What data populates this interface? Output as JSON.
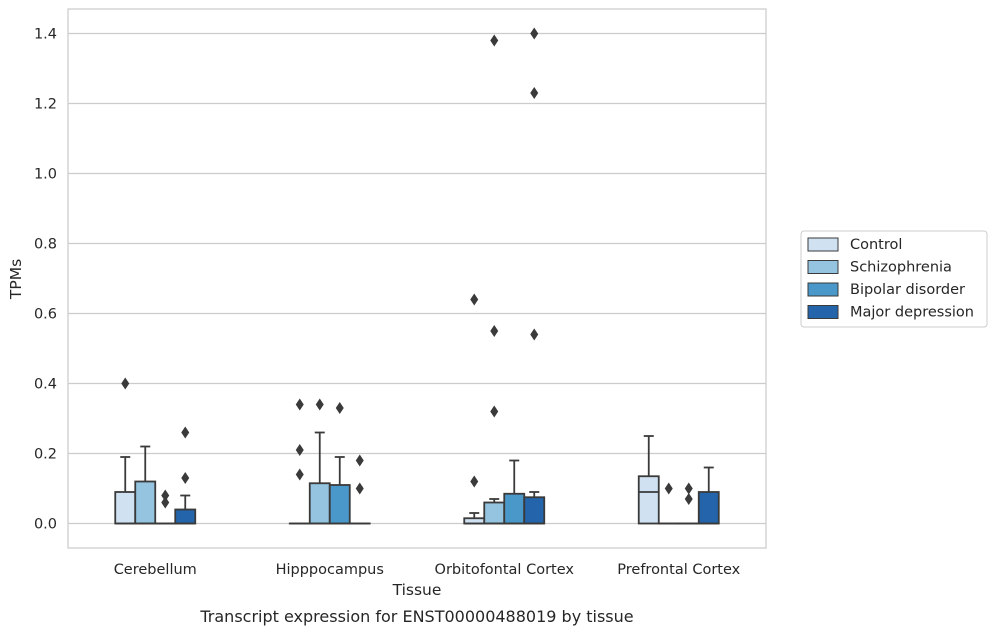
{
  "chart_data": {
    "type": "boxplot",
    "title": "",
    "caption": "Transcript expression for ENST00000488019 by tissue",
    "xlabel": "Tissue",
    "ylabel": "TPMs",
    "ylim": [
      -0.07,
      1.47
    ],
    "yticks": [
      0.0,
      0.2,
      0.4,
      0.6,
      0.8,
      1.0,
      1.2,
      1.4
    ],
    "ytick_labels": [
      "0.0",
      "0.2",
      "0.4",
      "0.6",
      "0.8",
      "1.0",
      "1.2",
      "1.4"
    ],
    "grid": "horizontal",
    "legend_position": "right",
    "categories": [
      "Cerebellum",
      "Hipppocampus",
      "Orbitofontal Cortex",
      "Prefrontal Cortex"
    ],
    "series": [
      {
        "name": "Control",
        "color": "#d0e1f2",
        "boxes": [
          {
            "q1": 0.0,
            "median": 0.0,
            "q3": 0.09,
            "whislo": 0.0,
            "whishi": 0.19,
            "fliers": [
              0.4
            ]
          },
          {
            "q1": 0.0,
            "median": 0.0,
            "q3": 0.0,
            "whislo": 0.0,
            "whishi": 0.0,
            "fliers": [
              0.14,
              0.21,
              0.34
            ]
          },
          {
            "q1": 0.0,
            "median": 0.0,
            "q3": 0.015,
            "whislo": 0.0,
            "whishi": 0.03,
            "fliers": [
              0.12,
              0.64
            ]
          },
          {
            "q1": 0.0,
            "median": 0.09,
            "q3": 0.135,
            "whislo": 0.0,
            "whishi": 0.25,
            "fliers": []
          }
        ]
      },
      {
        "name": "Schizophrenia",
        "color": "#94c4df",
        "boxes": [
          {
            "q1": 0.0,
            "median": 0.0,
            "q3": 0.12,
            "whislo": 0.0,
            "whishi": 0.22,
            "fliers": []
          },
          {
            "q1": 0.0,
            "median": 0.0,
            "q3": 0.115,
            "whislo": 0.0,
            "whishi": 0.26,
            "fliers": [
              0.34
            ]
          },
          {
            "q1": 0.0,
            "median": 0.0,
            "q3": 0.06,
            "whislo": 0.0,
            "whishi": 0.07,
            "fliers": [
              0.32,
              0.55,
              1.38
            ]
          },
          {
            "q1": 0.0,
            "median": 0.0,
            "q3": 0.0,
            "whislo": 0.0,
            "whishi": 0.0,
            "fliers": [
              0.1
            ]
          }
        ]
      },
      {
        "name": "Bipolar disorder",
        "color": "#4a98c9",
        "boxes": [
          {
            "q1": 0.0,
            "median": 0.0,
            "q3": 0.0,
            "whislo": 0.0,
            "whishi": 0.0,
            "fliers": [
              0.06,
              0.08
            ]
          },
          {
            "q1": 0.0,
            "median": 0.0,
            "q3": 0.11,
            "whislo": 0.0,
            "whishi": 0.19,
            "fliers": [
              0.33
            ]
          },
          {
            "q1": 0.0,
            "median": 0.0,
            "q3": 0.085,
            "whislo": 0.0,
            "whishi": 0.18,
            "fliers": []
          },
          {
            "q1": 0.0,
            "median": 0.0,
            "q3": 0.0,
            "whislo": 0.0,
            "whishi": 0.0,
            "fliers": [
              0.07,
              0.1
            ]
          }
        ]
      },
      {
        "name": "Major depression",
        "color": "#2464ab",
        "boxes": [
          {
            "q1": 0.0,
            "median": 0.0,
            "q3": 0.04,
            "whislo": 0.0,
            "whishi": 0.08,
            "fliers": [
              0.13,
              0.26
            ]
          },
          {
            "q1": 0.0,
            "median": 0.0,
            "q3": 0.0,
            "whislo": 0.0,
            "whishi": 0.0,
            "fliers": [
              0.1,
              0.18
            ]
          },
          {
            "q1": 0.0,
            "median": 0.0,
            "q3": 0.075,
            "whislo": 0.0,
            "whishi": 0.09,
            "fliers": [
              0.54,
              1.23,
              1.4
            ]
          },
          {
            "q1": 0.0,
            "median": 0.0,
            "q3": 0.09,
            "whislo": 0.0,
            "whishi": 0.16,
            "fliers": []
          }
        ]
      }
    ]
  }
}
